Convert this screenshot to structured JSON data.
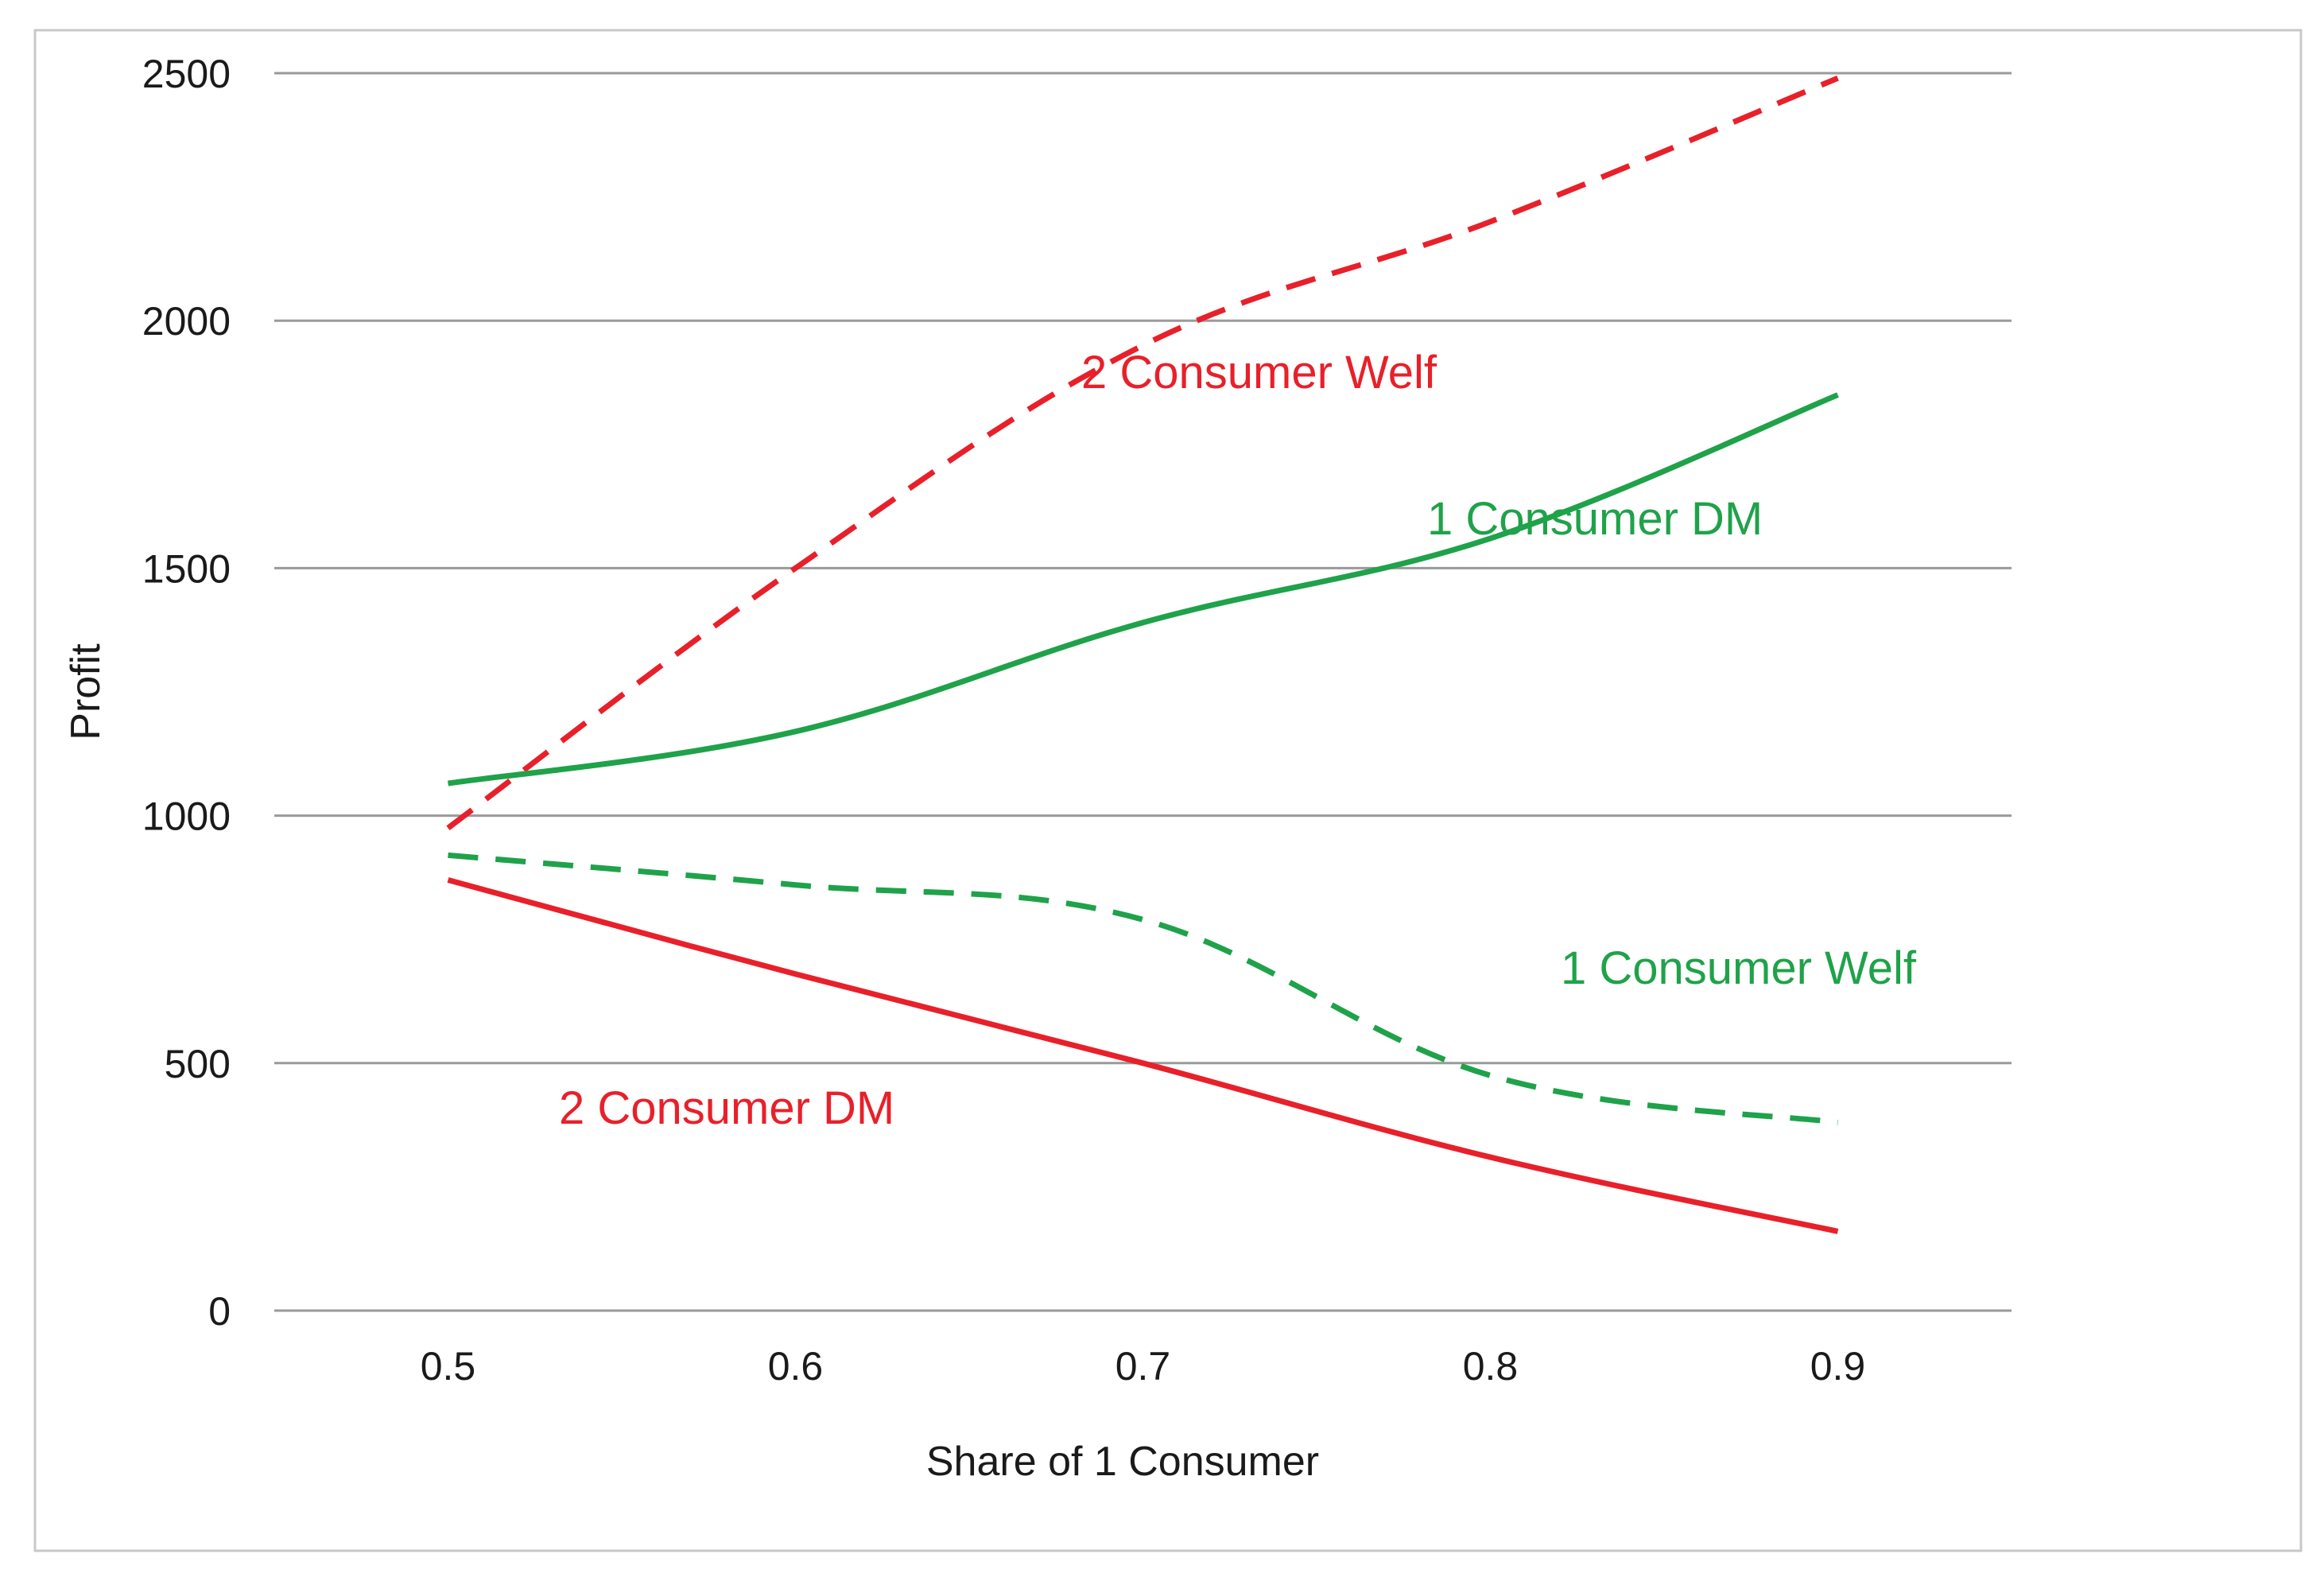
{
  "chart_data": {
    "type": "line",
    "title": "",
    "xlabel": "Share of 1 Consumer",
    "ylabel": "Profit",
    "x": [
      0.5,
      0.6,
      0.7,
      0.8,
      0.9
    ],
    "x_tick_labels": [
      "0.5",
      "0.6",
      "0.7",
      "0.8",
      "0.9"
    ],
    "xlim": [
      0.45,
      0.95
    ],
    "ylim": [
      0,
      2500
    ],
    "y_ticks": [
      0,
      500,
      1000,
      1500,
      2000,
      2500
    ],
    "y_tick_labels": [
      "0",
      "500",
      "1000",
      "1500",
      "2000",
      "2500"
    ],
    "grid": "horizontal",
    "legend": "none (inline labels)",
    "series": [
      {
        "name": "2 Consumer Welf",
        "label": "2 Consumer Welf",
        "color": "#e8202a",
        "dash": "dashed",
        "values": [
          975,
          1500,
          1950,
          2200,
          2490
        ]
      },
      {
        "name": "1 Consumer DM",
        "label": "1 Consumer DM",
        "color": "#1fa24a",
        "dash": "solid",
        "values": [
          1065,
          1170,
          1390,
          1560,
          1850
        ]
      },
      {
        "name": "1 Consumer Welf",
        "label": "1 Consumer Welf",
        "color": "#1fa24a",
        "dash": "dashed",
        "values": [
          920,
          860,
          790,
          475,
          380
        ]
      },
      {
        "name": "2 Consumer DM",
        "label": "2 Consumer DM",
        "color": "#e8202a",
        "dash": "solid",
        "values": [
          870,
          680,
          500,
          310,
          160
        ]
      }
    ]
  },
  "colors": {
    "grid": "#9a9a9a",
    "text": "#1a1a1a",
    "frame": "#c8c8c8"
  }
}
